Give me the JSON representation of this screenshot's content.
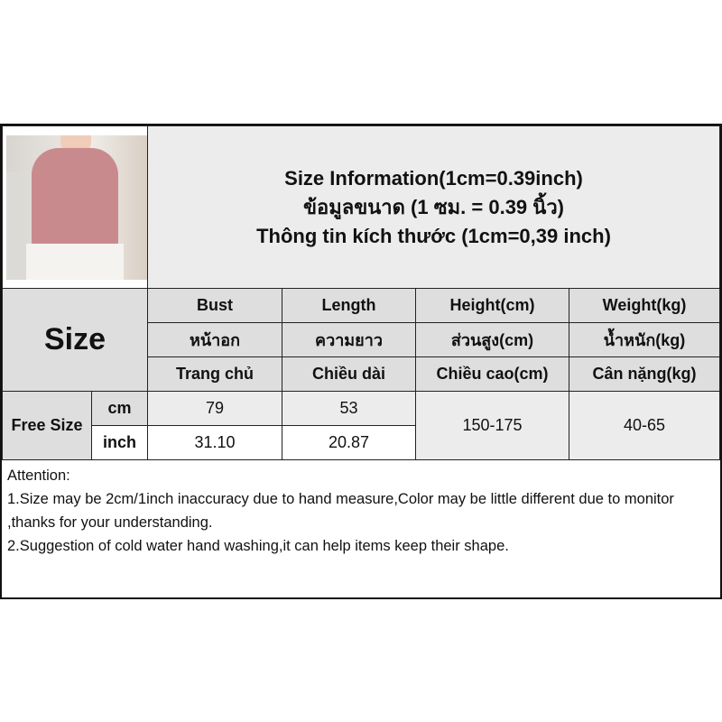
{
  "title": {
    "line1": "Size Information(1cm=0.39inch)",
    "line2": "ข้อมูลขนาด (1 ซม. = 0.39 นิ้ว)",
    "line3": "Thông tin kích thước (1cm=0,39 inch)"
  },
  "size_label": "Size",
  "columns": [
    {
      "en": "Bust",
      "th": "หน้าอก",
      "vi": "Trang chủ"
    },
    {
      "en": "Length",
      "th": "ความยาว",
      "vi": "Chiều dài"
    },
    {
      "en": "Height(cm)",
      "th": "ส่วนสูง(cm)",
      "vi": "Chiều cao(cm)"
    },
    {
      "en": "Weight(kg)",
      "th": "น้ำหนัก(kg)",
      "vi": "Cân nặng(kg)"
    }
  ],
  "rows": {
    "size_name": "Free Size",
    "cm": {
      "unit": "cm",
      "bust": "79",
      "length": "53"
    },
    "inch": {
      "unit": "inch",
      "bust": "31.10",
      "length": "20.87"
    },
    "height": "150-175",
    "weight": "40-65"
  },
  "attention": {
    "heading": "Attention:",
    "line1": "1.Size may be 2cm/1inch inaccuracy due to hand measure,Color may be little different due to monitor ,thanks for your understanding.",
    "line2": "2.Suggestion of cold water hand washing,it can help items keep their shape."
  },
  "colors": {
    "header_gray": "#dedede",
    "light_gray": "#ececec",
    "top_pink": "#c98a8e"
  }
}
